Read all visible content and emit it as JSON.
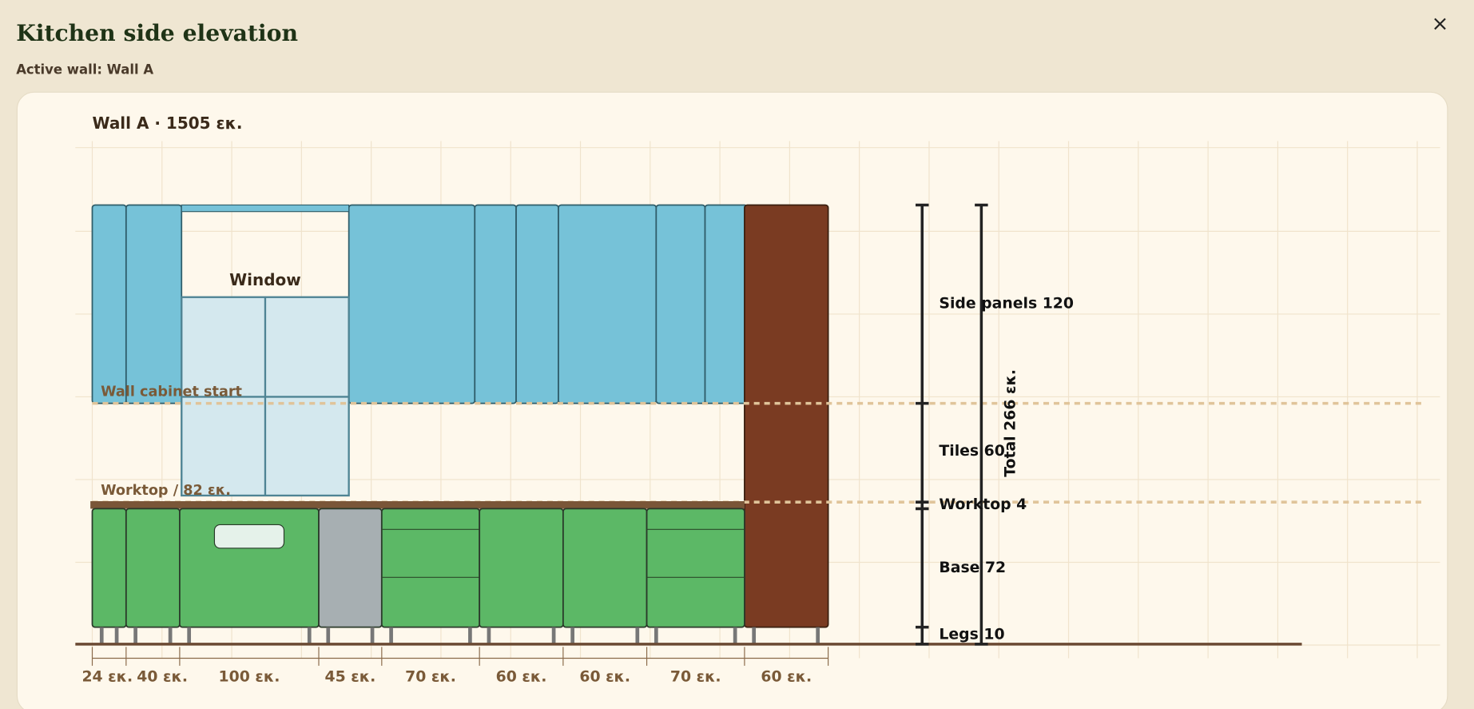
{
  "dialog": {
    "title": "Kitchen side elevation",
    "subtitle": "Active wall: Wall A",
    "close": "×"
  },
  "drawing": {
    "heading": "Wall A · 1505 εκ.",
    "window_label": "Window",
    "guides": [
      "Wall cabinet start",
      "Worktop / 82 εκ."
    ],
    "dimensions": [
      "Side panels 120",
      "Tiles 60",
      "Worktop 4",
      "Base 72",
      "Legs 10"
    ],
    "total": "Total 266 εκ.",
    "widths": [
      "24 εκ.",
      "40 εκ.",
      "100 εκ.",
      "45 εκ.",
      "70 εκ.",
      "60 εκ.",
      "60 εκ.",
      "70 εκ.",
      "60 εκ."
    ]
  }
}
